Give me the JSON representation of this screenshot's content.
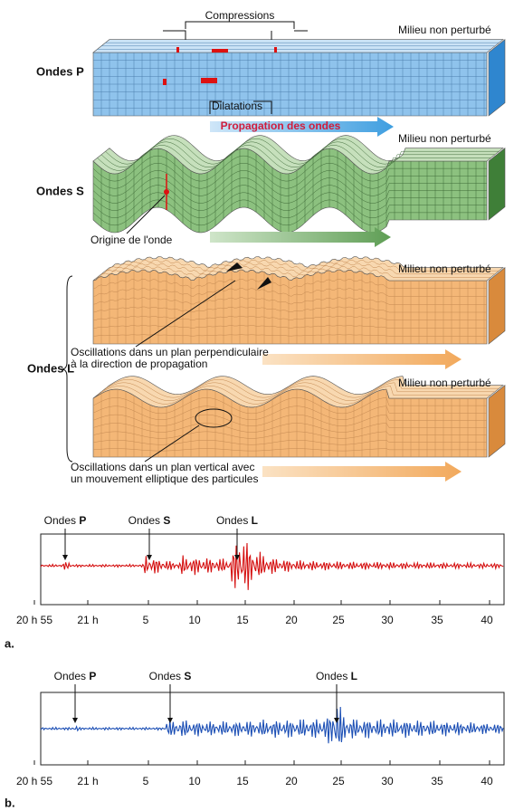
{
  "waves": [
    {
      "label": "Ondes P",
      "top_label": "Compressions",
      "bottom_label": "Dilatations",
      "arrow_label": "Propagation des ondes",
      "medium": "Milieu non perturbé"
    },
    {
      "label": "Ondes S",
      "medium": "Milieu non perturbé",
      "note": "Origine de l'onde"
    },
    {
      "label": "Ondes L",
      "panels": [
        {
          "medium": "Milieu non perturbé",
          "note": [
            "Oscillations dans un plan perpendiculaire",
            "à la direction de propagation"
          ]
        },
        {
          "medium": "Milieu non perturbé",
          "note": [
            "Oscillations dans un plan vertical avec",
            "un mouvement elliptique des particules"
          ]
        }
      ]
    }
  ],
  "seismograms": [
    {
      "panel": "a.",
      "markers": [
        {
          "prefix": "Ondes ",
          "letter": "P"
        },
        {
          "prefix": "Ondes ",
          "letter": "S"
        },
        {
          "prefix": "Ondes ",
          "letter": "L"
        }
      ],
      "ticks": [
        "20 h 55",
        "21 h",
        "5",
        "10",
        "15",
        "20",
        "25",
        "30",
        "35",
        "40"
      ]
    },
    {
      "panel": "b.",
      "markers": [
        {
          "prefix": "Ondes ",
          "letter": "P"
        },
        {
          "prefix": "Ondes ",
          "letter": "S"
        },
        {
          "prefix": "Ondes ",
          "letter": "L"
        }
      ],
      "ticks": [
        "20 h 55",
        "21 h",
        "5",
        "10",
        "15",
        "20",
        "25",
        "30",
        "35",
        "40"
      ]
    }
  ]
}
